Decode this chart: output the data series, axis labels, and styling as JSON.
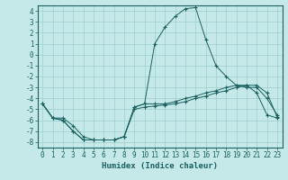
{
  "title": "",
  "xlabel": "Humidex (Indice chaleur)",
  "background_color": "#c5e8e8",
  "grid_color": "#9dcece",
  "line_color": "#1a6060",
  "xlim": [
    -0.5,
    23.5
  ],
  "ylim": [
    -8.5,
    4.5
  ],
  "yticks": [
    -8,
    -7,
    -6,
    -5,
    -4,
    -3,
    -2,
    -1,
    0,
    1,
    2,
    3,
    4
  ],
  "xticks": [
    0,
    1,
    2,
    3,
    4,
    5,
    6,
    7,
    8,
    9,
    10,
    11,
    12,
    13,
    14,
    15,
    16,
    17,
    18,
    19,
    20,
    21,
    22,
    23
  ],
  "curve1_y": [
    -4.5,
    -5.8,
    -5.8,
    -6.5,
    -7.5,
    -7.8,
    -7.8,
    -7.8,
    -7.5,
    -4.8,
    -4.5,
    1.0,
    2.5,
    3.5,
    4.2,
    4.3,
    1.4,
    -1.0,
    -2.0,
    -2.8,
    -3.0,
    -3.0,
    -4.0,
    -5.5
  ],
  "curve2_y": [
    -4.5,
    -5.8,
    -6.0,
    -7.0,
    -7.8,
    -7.8,
    -7.8,
    -7.8,
    -7.5,
    -5.0,
    -4.8,
    -4.7,
    -4.6,
    -4.5,
    -4.3,
    -4.0,
    -3.8,
    -3.5,
    -3.3,
    -3.0,
    -2.8,
    -2.8,
    -3.5,
    -5.7
  ],
  "curve3_y": [
    -4.5,
    -5.8,
    -6.0,
    -7.0,
    -7.8,
    -7.8,
    -7.8,
    -7.8,
    -7.5,
    -4.8,
    -4.5,
    -4.5,
    -4.5,
    -4.3,
    -4.0,
    -3.8,
    -3.5,
    -3.3,
    -3.0,
    -2.8,
    -2.8,
    -3.5,
    -5.5,
    -5.8
  ],
  "xlabel_fontsize": 6.5,
  "tick_fontsize": 5.5,
  "linewidth": 0.7,
  "markersize": 3.5
}
